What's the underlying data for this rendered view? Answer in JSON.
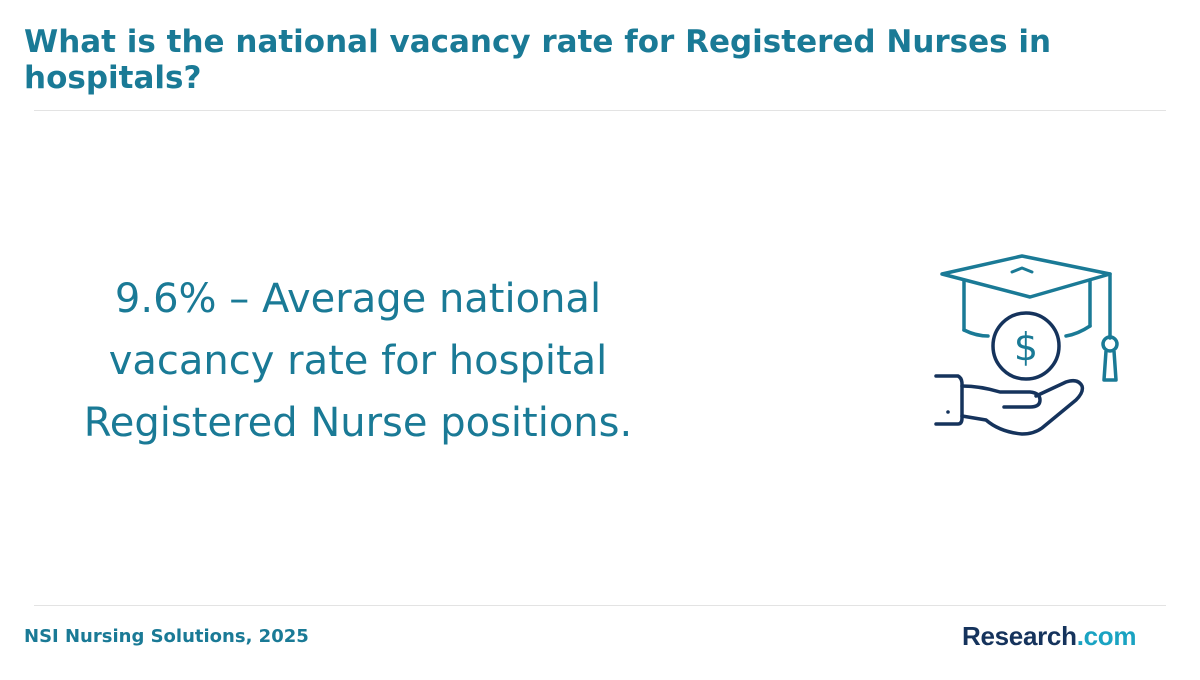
{
  "header": {
    "title": "What is the national vacancy rate for Registered Nurses in hospitals?"
  },
  "main": {
    "stat_text": "9.6% – Average national vacancy rate for hospital Registered Nurse positions.",
    "icon": "graduation-cap-coin-hand-icon"
  },
  "footer": {
    "source": "NSI Nursing Solutions, 2025",
    "logo": {
      "brand": "Research",
      "suffix": ".com"
    }
  },
  "colors": {
    "accent": "#1a7a96",
    "icon_dark": "#15335c",
    "logo_dark": "#15335c",
    "logo_light": "#1aa3c2",
    "divider": "#e3e3e3"
  }
}
